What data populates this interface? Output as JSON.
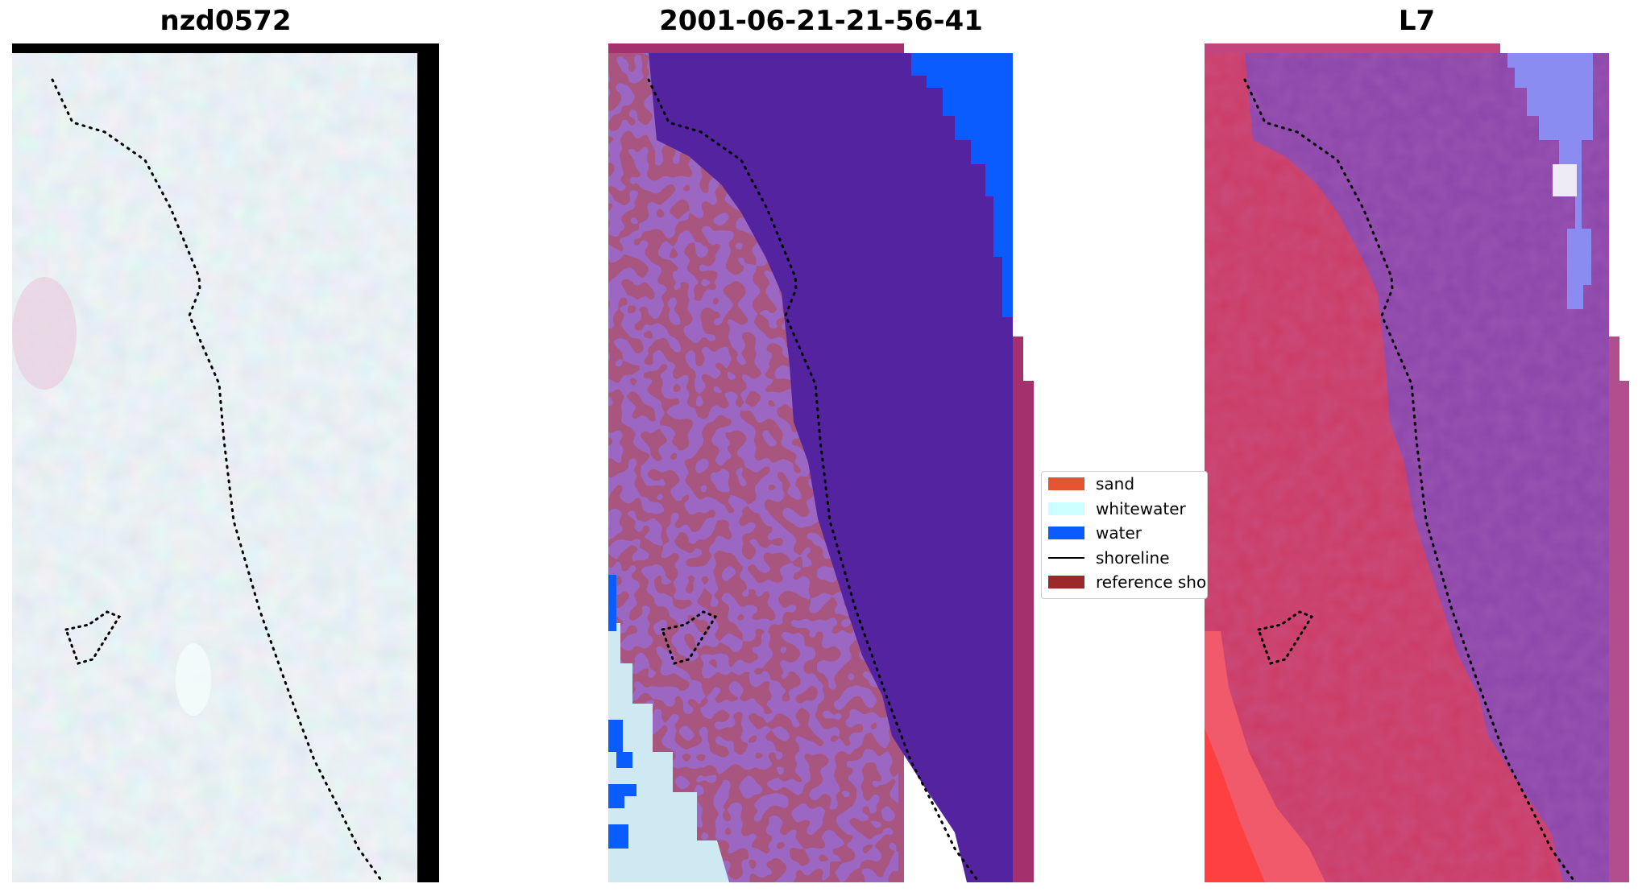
{
  "titles": {
    "left": "nzd0572",
    "middle": "2001-06-21-21-56-41",
    "right": "L7"
  },
  "legend": {
    "items": [
      {
        "label": "sand",
        "color": "#e25432"
      },
      {
        "label": "whitewater",
        "color": "#ccffff"
      },
      {
        "label": "water",
        "color": "#0a5cff"
      },
      {
        "label": "shoreline",
        "color": "#000000"
      },
      {
        "label": "reference shoreline",
        "color": "#9a2a2a"
      }
    ]
  },
  "colors": {
    "rgb_background": "#c6dde6",
    "land_classified": "#a8557f",
    "sea_classified": "#5424a0",
    "water_class": "#0a5cff",
    "whitewater_class": "#cfe9f2",
    "mndwi_land": "#cc3a62",
    "mndwi_sea": "#8a45aa",
    "mndwi_pink_edge": "#a4306e",
    "no_data": "#000000"
  }
}
